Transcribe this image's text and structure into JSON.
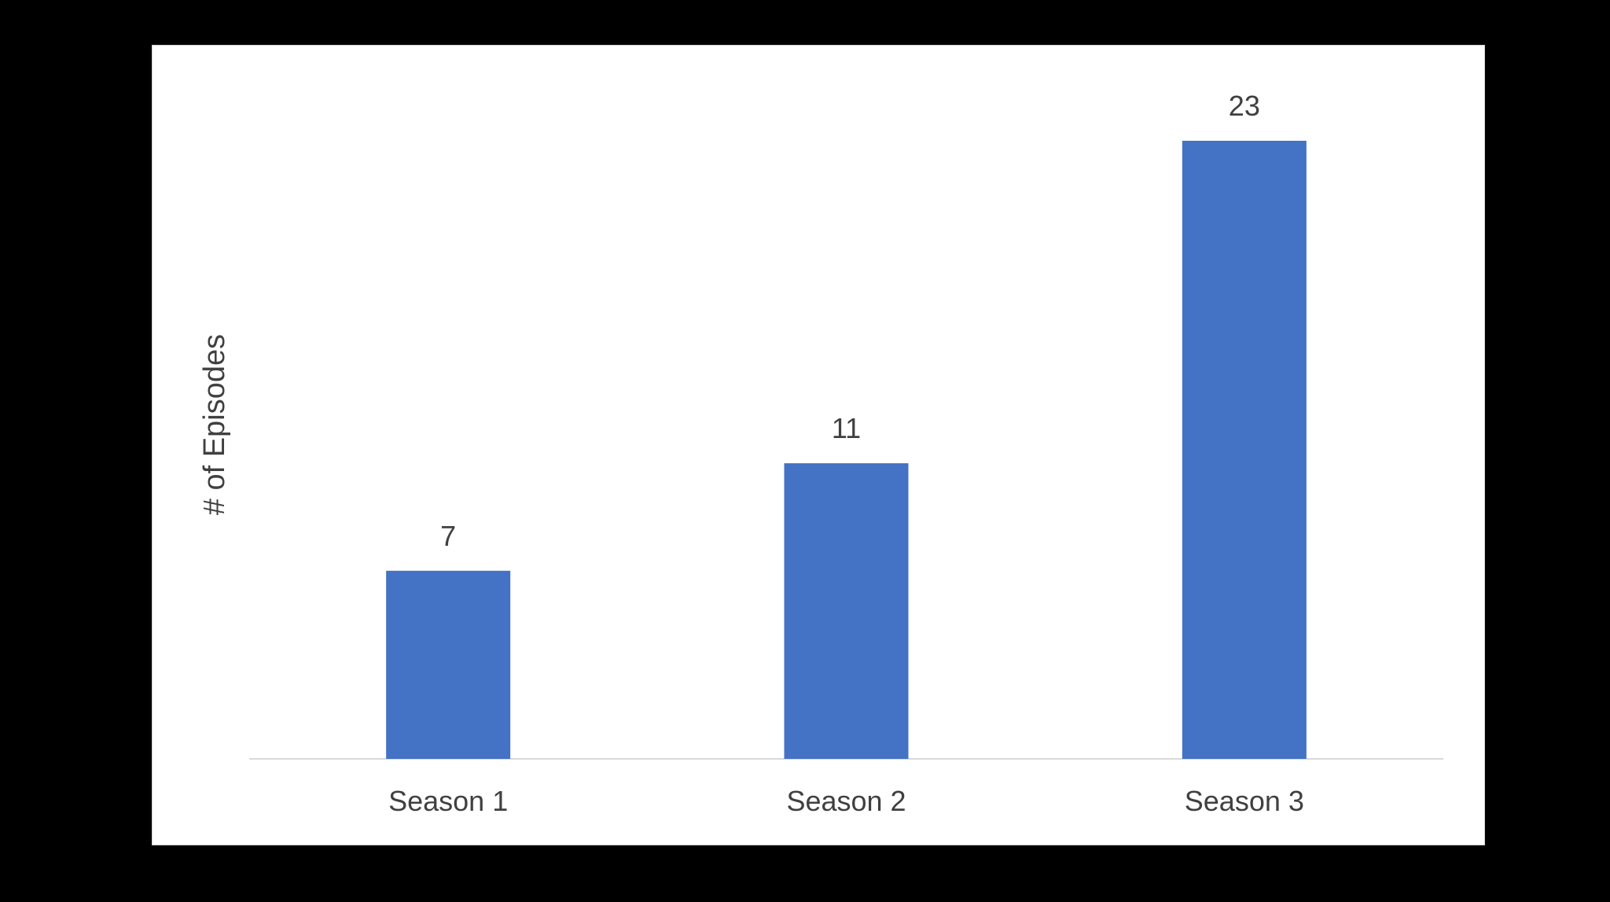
{
  "colors": {
    "bar": "#4472c4",
    "background": "#000000",
    "plot_background": "#ffffff",
    "axis": "#d9d9d9",
    "text": "#404040"
  },
  "chart_data": {
    "type": "bar",
    "categories": [
      "Season 1",
      "Season 2",
      "Season 3"
    ],
    "values": [
      7,
      11,
      23
    ],
    "data_labels": [
      "7",
      "11",
      "23"
    ],
    "ylabel": "# of Episodes",
    "xlabel": "",
    "grid": false,
    "ylim": [
      0,
      25
    ]
  }
}
